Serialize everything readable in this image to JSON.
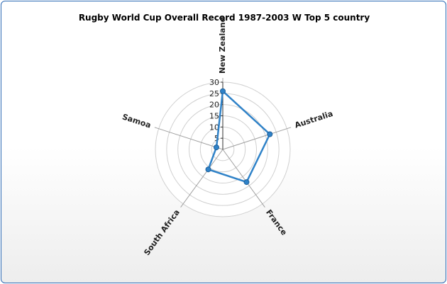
{
  "chart_data": {
    "type": "radar",
    "title": "Rugby World Cup Overall Record 1987-2003 W Top 5 country",
    "categories": [
      "New Zealand",
      "Australia",
      "France",
      "South Africa",
      "Samoa"
    ],
    "series": [
      {
        "values": [
          26,
          22,
          18,
          11,
          3
        ]
      }
    ],
    "ylim": [
      0,
      30
    ],
    "ticks": [
      5,
      10,
      15,
      20,
      25,
      30
    ],
    "grid": true,
    "colors": {
      "series": "#2f82c8",
      "marker": "#2f82c8",
      "grid": "#d0d0d0",
      "spoke": "#a0a0a0",
      "border": "#2e6bb5"
    }
  }
}
